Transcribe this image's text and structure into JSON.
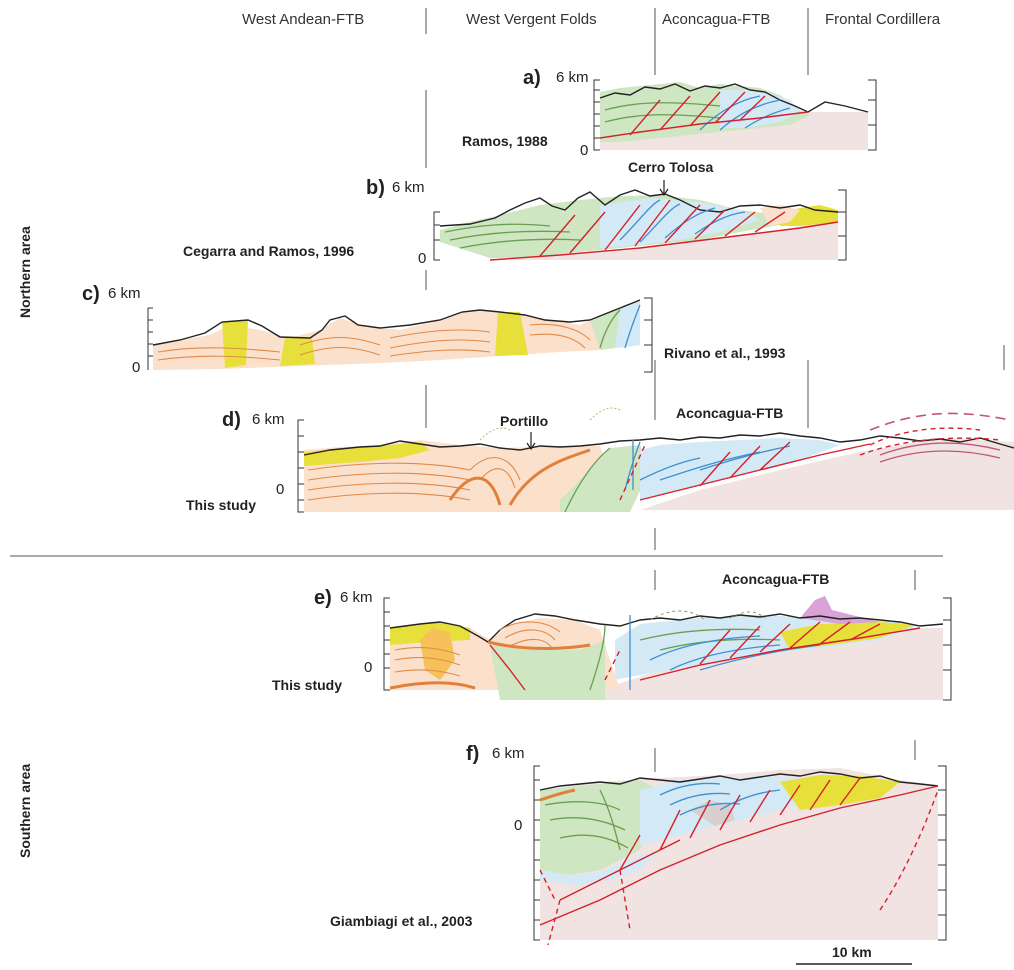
{
  "columns": [
    "West Andean-FTB",
    "West Vergent Folds",
    "Aconcagua-FTB",
    "Frontal Cordillera"
  ],
  "areas": {
    "northern": "Northern area",
    "southern": "Southern area"
  },
  "panels": {
    "a": {
      "letter": "a)",
      "top": "6 km",
      "base": "0",
      "citation": "Ramos, 1988"
    },
    "b": {
      "letter": "b)",
      "top": "6 km",
      "base": "0",
      "citation": "Cegarra and Ramos, 1996",
      "annotation": "Cerro Tolosa"
    },
    "c": {
      "letter": "c)",
      "top": "6 km",
      "base": "0",
      "citation": "Rivano et al., 1993"
    },
    "d": {
      "letter": "d)",
      "top": "6 km",
      "base": "0",
      "citation": "This study",
      "annotation": "Portillo",
      "annotation2": "Aconcagua-FTB"
    },
    "e": {
      "letter": "e)",
      "top": "6 km",
      "base": "0",
      "citation": "This study",
      "annotation": "Aconcagua-FTB"
    },
    "f": {
      "letter": "f)",
      "top": "6 km",
      "base": "0",
      "citation": "Giambiagi et al., 2003"
    }
  },
  "scale": {
    "label": "10 km"
  },
  "colors": {
    "mesozoic_green": "#cfe6c2",
    "blue_unit": "#d4e9f6",
    "cenozoic_orange": "#fbe0cb",
    "yellow_unit": "#e8e03a",
    "basement": "#f1e3e1",
    "thrust_red": "#d4202b",
    "intrusive_purple": "#d9a3d9"
  }
}
